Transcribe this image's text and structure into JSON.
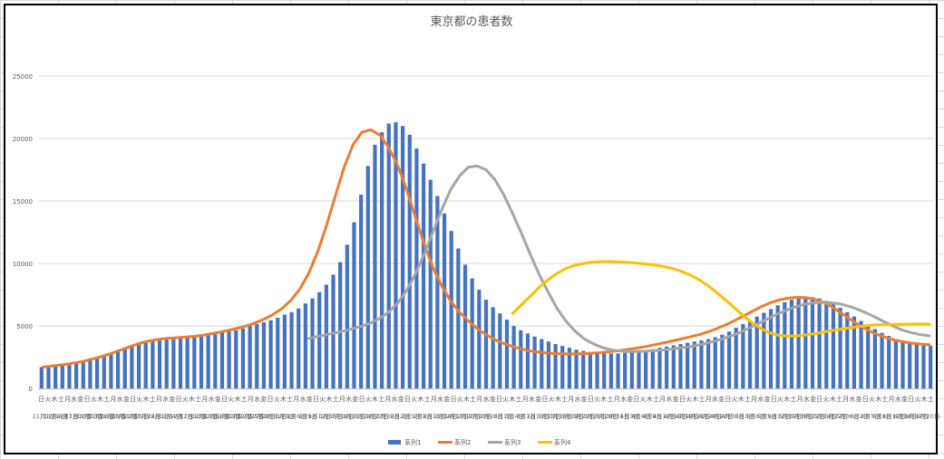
{
  "colors": {
    "series1": "#4472C4",
    "series2": "#ED7D31",
    "series3": "#A5A5A5",
    "series4": "#FFC000",
    "grid": "#D9D9D9",
    "text": "#595959"
  },
  "chart_data": {
    "type": "bar",
    "title": "東京都の患者数",
    "xlabel": "",
    "ylabel": "",
    "ylim": [
      0,
      25000
    ],
    "yticks": [
      "0",
      "5000",
      "10000",
      "15000",
      "20000",
      "25000"
    ],
    "grid": true,
    "legend_position": "bottom",
    "weekday_labels": [
      "日",
      "火",
      "木",
      "土",
      "月",
      "水",
      "金",
      "日",
      "火",
      "木",
      "土",
      "月",
      "水",
      "金",
      "日",
      "火",
      "木",
      "土",
      "月",
      "水",
      "金",
      "日",
      "火",
      "木",
      "土",
      "月",
      "水",
      "金",
      "日",
      "火",
      "木",
      "土",
      "月",
      "水",
      "金",
      "日",
      "火",
      "木",
      "土",
      "月",
      "水",
      "金",
      "日",
      "火",
      "木",
      "土",
      "月",
      "水",
      "金",
      "日",
      "火",
      "木",
      "土",
      "月",
      "水",
      "金",
      "日",
      "火",
      "木",
      "土",
      "月",
      "水",
      "金",
      "日",
      "火",
      "木",
      "土",
      "月",
      "水",
      "金",
      "日",
      "火",
      "木",
      "土",
      "月",
      "水",
      "金",
      "日",
      "火",
      "木",
      "土",
      "月",
      "水",
      "金",
      "日",
      "火",
      "木",
      "土",
      "月",
      "水",
      "金",
      "日",
      "火",
      "木",
      "土",
      "月",
      "水",
      "金",
      "日",
      "火",
      "木",
      "土",
      "月",
      "水",
      "金",
      "日",
      "火",
      "木",
      "土",
      "月",
      "水",
      "金",
      "日",
      "火",
      "木",
      "土",
      "月",
      "水",
      "金",
      "日",
      "火",
      "木",
      "土",
      "月",
      "水",
      "金",
      "日",
      "火",
      "木",
      "土",
      "月",
      "水",
      "金",
      "日",
      "火",
      "木",
      "土"
    ],
    "date_labels": [
      [
        "11月1日",
        "11月4日",
        "11月7日",
        "11月10日",
        "11月13日",
        "11月16日",
        "11月19日",
        "11月22日",
        "11月25日",
        "11月28日",
        "12月1日",
        "12月4日",
        "12月7日",
        "12月10日",
        "12月13日",
        "12月16日",
        "12月19日",
        "12月22日",
        "12月25日",
        "12月28日",
        "12月31日"
      ],
      [
        "1月3日",
        "1月6日",
        "1月9日",
        "1月12日",
        "1月15日",
        "1月18日",
        "1月21日",
        "1月24日",
        "1月27日",
        "1月30日",
        "2月2日",
        "2月5日",
        "2月8日",
        "2月11日",
        "2月14日",
        "2月17日",
        "2月20日",
        "2月23日",
        "2月26日",
        "3月1日",
        "3月4日",
        "3月7日",
        "3月10日",
        "3月13日",
        "3月16日",
        "3月19日",
        "3月22日",
        "3月25日",
        "3月28日",
        "3月31日"
      ],
      [
        "4月3日",
        "4月6日",
        "4月9日",
        "4月12日",
        "4月15日",
        "4月18日",
        "4月21日",
        "4月24日",
        "4月27日",
        "4月30日",
        "5月3日",
        "5月6日",
        "5月9日",
        "5月12日",
        "5月15日",
        "5月18日",
        "5月21日",
        "5月24日",
        "5月27日",
        "5月30日",
        "6月2日",
        "6月5日",
        "6月8日",
        "6月11日",
        "6月14日",
        "6月17日",
        "6月20日"
      ]
    ],
    "series": [
      {
        "name": "系列1",
        "type": "bar",
        "color": "#4472C4",
        "values": [
          1700,
          1700,
          1750,
          1800,
          1900,
          2050,
          2150,
          2250,
          2400,
          2600,
          2800,
          2950,
          3150,
          3350,
          3550,
          3800,
          3950,
          4000,
          4000,
          4050,
          4100,
          4100,
          4150,
          4150,
          4300,
          4450,
          4500,
          4550,
          4650,
          4800,
          5000,
          5150,
          5300,
          5450,
          5650,
          5900,
          6100,
          6400,
          6800,
          7200,
          7700,
          8300,
          9100,
          10100,
          11500,
          13300,
          15500,
          17800,
          19500,
          20500,
          21200,
          21300,
          21000,
          20300,
          19200,
          18000,
          16700,
          15400,
          14000,
          12600,
          11200,
          9900,
          8800,
          7900,
          7100,
          6500,
          6000,
          5500,
          5000,
          4650,
          4400,
          4150,
          3950,
          3750,
          3550,
          3400,
          3250,
          3100,
          3000,
          2900,
          2850,
          2800,
          2800,
          2800,
          2850,
          2900,
          2950,
          3050,
          3150,
          3250,
          3350,
          3450,
          3550,
          3650,
          3750,
          3850,
          3950,
          4100,
          4300,
          4550,
          4850,
          5150,
          5450,
          5750,
          6050,
          6350,
          6650,
          6900,
          7100,
          7200,
          7250,
          7300,
          7200,
          7000,
          6750,
          6450,
          6100,
          5750,
          5400,
          5050,
          4750,
          4450,
          4200,
          3950,
          3750,
          3600,
          3500,
          3450,
          3400
        ]
      },
      {
        "name": "系列2",
        "type": "line",
        "color": "#ED7D31",
        "values": [
          1700,
          1780,
          1870,
          1970,
          2090,
          2240,
          2420,
          2620,
          2860,
          3120,
          3380,
          3620,
          3800,
          3920,
          4000,
          4050,
          4100,
          4160,
          4250,
          4370,
          4500,
          4650,
          4820,
          5010,
          5250,
          5550,
          5920,
          6400,
          7050,
          7950,
          9200,
          10900,
          13000,
          15400,
          17700,
          19500,
          20500,
          20700,
          20300,
          19300,
          17900,
          16000,
          13800,
          11600,
          9700,
          8200,
          7000,
          6100,
          5400,
          4800,
          4300,
          3900,
          3600,
          3350,
          3150,
          3000,
          2900,
          2820,
          2780,
          2760,
          2760,
          2780,
          2820,
          2870,
          2940,
          3020,
          3120,
          3230,
          3350,
          3490,
          3640,
          3800,
          3960,
          4120,
          4300,
          4520,
          4780,
          5080,
          5420,
          5790,
          6170,
          6530,
          6840,
          7070,
          7220,
          7290,
          7270,
          7150,
          6900,
          6520,
          6050,
          5550,
          5080,
          4680,
          4340,
          4080,
          3880,
          3730,
          3620,
          3540,
          3490
        ]
      },
      {
        "name": "系列3",
        "type": "line",
        "color": "#A5A5A5",
        "values": [
          null,
          null,
          null,
          null,
          null,
          null,
          null,
          null,
          null,
          null,
          null,
          null,
          null,
          null,
          null,
          null,
          null,
          null,
          null,
          null,
          null,
          null,
          null,
          null,
          null,
          null,
          null,
          null,
          null,
          null,
          4000,
          4150,
          4300,
          4450,
          4600,
          4780,
          4980,
          5250,
          5600,
          6100,
          6800,
          7800,
          9100,
          10700,
          12500,
          14300,
          15900,
          17000,
          17700,
          17800,
          17500,
          16700,
          15500,
          14000,
          12400,
          10700,
          9100,
          7700,
          6400,
          5400,
          4600,
          4000,
          3600,
          3300,
          3100,
          3000,
          2950,
          2950,
          2980,
          3020,
          3080,
          3150,
          3250,
          3350,
          3480,
          3640,
          3820,
          4040,
          4300,
          4600,
          4950,
          5300,
          5650,
          6000,
          6300,
          6550,
          6750,
          6850,
          6880,
          6850,
          6750,
          6550,
          6300,
          6000,
          5650,
          5300,
          4950,
          4650,
          4450,
          4300,
          4200
        ]
      },
      {
        "name": "系列4",
        "type": "line",
        "color": "#FFC000",
        "values": [
          null,
          null,
          null,
          null,
          null,
          null,
          null,
          null,
          null,
          null,
          null,
          null,
          null,
          null,
          null,
          null,
          null,
          null,
          null,
          null,
          null,
          null,
          null,
          null,
          null,
          null,
          null,
          null,
          null,
          null,
          null,
          null,
          null,
          null,
          null,
          null,
          null,
          null,
          null,
          null,
          null,
          null,
          null,
          null,
          null,
          null,
          null,
          null,
          null,
          null,
          null,
          null,
          null,
          6000,
          6700,
          7400,
          8100,
          8700,
          9200,
          9600,
          9850,
          10000,
          10100,
          10150,
          10150,
          10120,
          10080,
          10030,
          9960,
          9870,
          9760,
          9600,
          9380,
          9080,
          8700,
          8230,
          7680,
          7080,
          6450,
          5820,
          5250,
          4780,
          4450,
          4250,
          4180,
          4200,
          4280,
          4380,
          4500,
          4620,
          4740,
          4850,
          4950,
          5030,
          5080,
          5110,
          5130,
          5140,
          5150,
          5150,
          5150
        ]
      }
    ]
  }
}
